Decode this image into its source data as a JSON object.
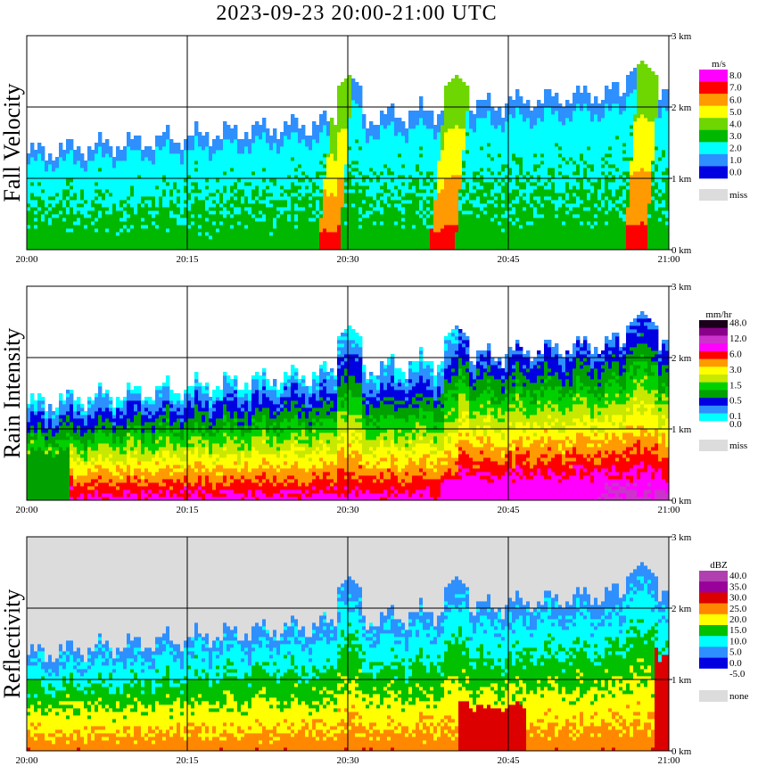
{
  "title": "2023-09-23   20:00-21:00 UTC",
  "chart_data": [
    {
      "type": "heatmap",
      "ylabel": "Fall Velocity",
      "unit": "m/s",
      "x_ticks": [
        "20:00",
        "20:15",
        "20:30",
        "20:45",
        "21:00"
      ],
      "y_ticks": [
        "0 km",
        "1 km",
        "2 km",
        "3 km"
      ],
      "ylim_km": [
        0,
        3.0
      ],
      "grid": true,
      "legend": "right",
      "colorbar": [
        {
          "label": "8.0",
          "color": "#ff00ff"
        },
        {
          "label": "7.0",
          "color": "#ff0000"
        },
        {
          "label": "6.0",
          "color": "#ff9a00"
        },
        {
          "label": "5.0",
          "color": "#ffff00"
        },
        {
          "label": "4.0",
          "color": "#6ed600"
        },
        {
          "label": "3.0",
          "color": "#00b800"
        },
        {
          "label": "2.0",
          "color": "#00ffff"
        },
        {
          "label": "1.0",
          "color": "#2e8fff"
        },
        {
          "label": "0.0",
          "color": "#0000e0"
        }
      ],
      "missing_label": "miss",
      "missing_color": "#dcdcdc"
    },
    {
      "type": "heatmap",
      "ylabel": "Rain Intensity",
      "unit": "mm/hr",
      "x_ticks": [
        "20:00",
        "20:15",
        "20:30",
        "20:45",
        "21:00"
      ],
      "y_ticks": [
        "0 km",
        "1 km",
        "2 km",
        "3 km"
      ],
      "ylim_km": [
        0,
        3.0
      ],
      "grid": true,
      "legend": "right",
      "colorbar": [
        {
          "label": "48.0",
          "color": "#1a001a"
        },
        {
          "label": "",
          "color": "#8a008a"
        },
        {
          "label": "12.0",
          "color": "#cc33cc"
        },
        {
          "label": "",
          "color": "#ff00ff"
        },
        {
          "label": "6.0",
          "color": "#ff0000"
        },
        {
          "label": "",
          "color": "#ff9a00"
        },
        {
          "label": "3.0",
          "color": "#ffff00"
        },
        {
          "label": "",
          "color": "#c8e800"
        },
        {
          "label": "1.5",
          "color": "#00d000"
        },
        {
          "label": "",
          "color": "#00a000"
        },
        {
          "label": "0.5",
          "color": "#0000e0"
        },
        {
          "label": "",
          "color": "#2e8fff"
        },
        {
          "label": "0.1",
          "color": "#00ffff"
        },
        {
          "label": "0.0",
          "color": "#ffffff"
        }
      ],
      "missing_label": "miss",
      "missing_color": "#dcdcdc"
    },
    {
      "type": "heatmap",
      "ylabel": "Reflectivity",
      "unit": "dBZ",
      "x_ticks": [
        "20:00",
        "20:15",
        "20:30",
        "20:45",
        "21:00"
      ],
      "y_ticks": [
        "0 km",
        "1 km",
        "2 km",
        "3 km"
      ],
      "ylim_km": [
        0,
        3.0
      ],
      "grid": true,
      "legend": "right",
      "colorbar": [
        {
          "label": "40.0",
          "color": "#b040b0"
        },
        {
          "label": "35.0",
          "color": "#9a009a"
        },
        {
          "label": "30.0",
          "color": "#dd0000"
        },
        {
          "label": "25.0",
          "color": "#ff8800"
        },
        {
          "label": "20.0",
          "color": "#ffff00"
        },
        {
          "label": "15.0",
          "color": "#00c000"
        },
        {
          "label": "10.0",
          "color": "#00ffff"
        },
        {
          "label": "5.0",
          "color": "#2e8fff"
        },
        {
          "label": "0.0",
          "color": "#0000e0"
        },
        {
          "label": "-5.0",
          "color": "#ffffff"
        }
      ],
      "missing_label": "none",
      "missing_color": "#dcdcdc"
    }
  ]
}
